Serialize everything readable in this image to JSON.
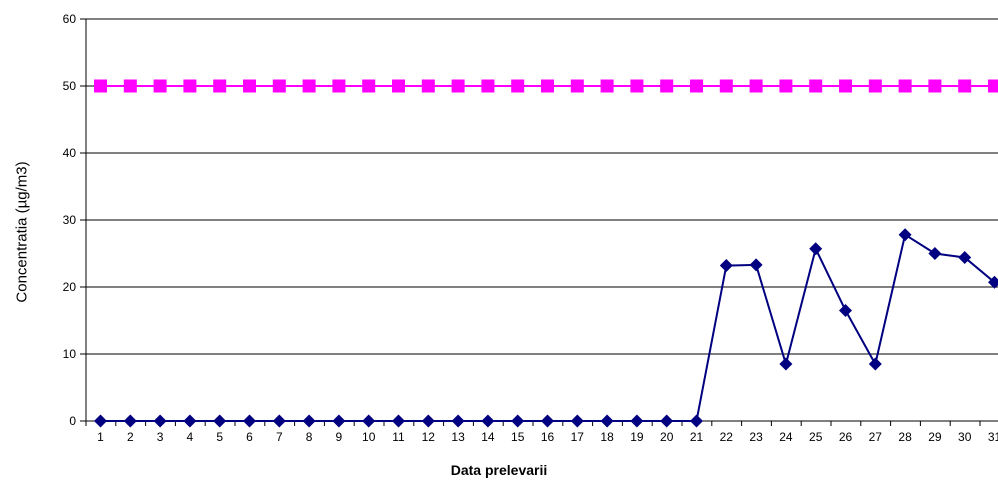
{
  "chart_data": {
    "type": "line",
    "title": "",
    "xlabel": "Data prelevarii",
    "ylabel": "Concentratia (µg/m3)",
    "categories": [
      "1",
      "2",
      "3",
      "4",
      "5",
      "6",
      "7",
      "8",
      "9",
      "10",
      "11",
      "12",
      "13",
      "14",
      "15",
      "16",
      "17",
      "18",
      "19",
      "20",
      "21",
      "22",
      "23",
      "24",
      "25",
      "26",
      "27",
      "28",
      "29",
      "30",
      "31"
    ],
    "ylim": [
      0,
      60
    ],
    "yticks": [
      0,
      10,
      20,
      30,
      40,
      50,
      60
    ],
    "grid": true,
    "series": [
      {
        "color": "#ff00ff",
        "marker": "square",
        "values": [
          50,
          50,
          50,
          50,
          50,
          50,
          50,
          50,
          50,
          50,
          50,
          50,
          50,
          50,
          50,
          50,
          50,
          50,
          50,
          50,
          50,
          50,
          50,
          50,
          50,
          50,
          50,
          50,
          50,
          50,
          50
        ]
      },
      {
        "color": "#000080",
        "marker": "diamond",
        "values": [
          0,
          0,
          0,
          0,
          0,
          0,
          0,
          0,
          0,
          0,
          0,
          0,
          0,
          0,
          0,
          0,
          0,
          0,
          0,
          0,
          0,
          23.2,
          23.3,
          8.5,
          25.7,
          16.5,
          8.5,
          27.8,
          25,
          24.4,
          20.7
        ]
      }
    ]
  }
}
